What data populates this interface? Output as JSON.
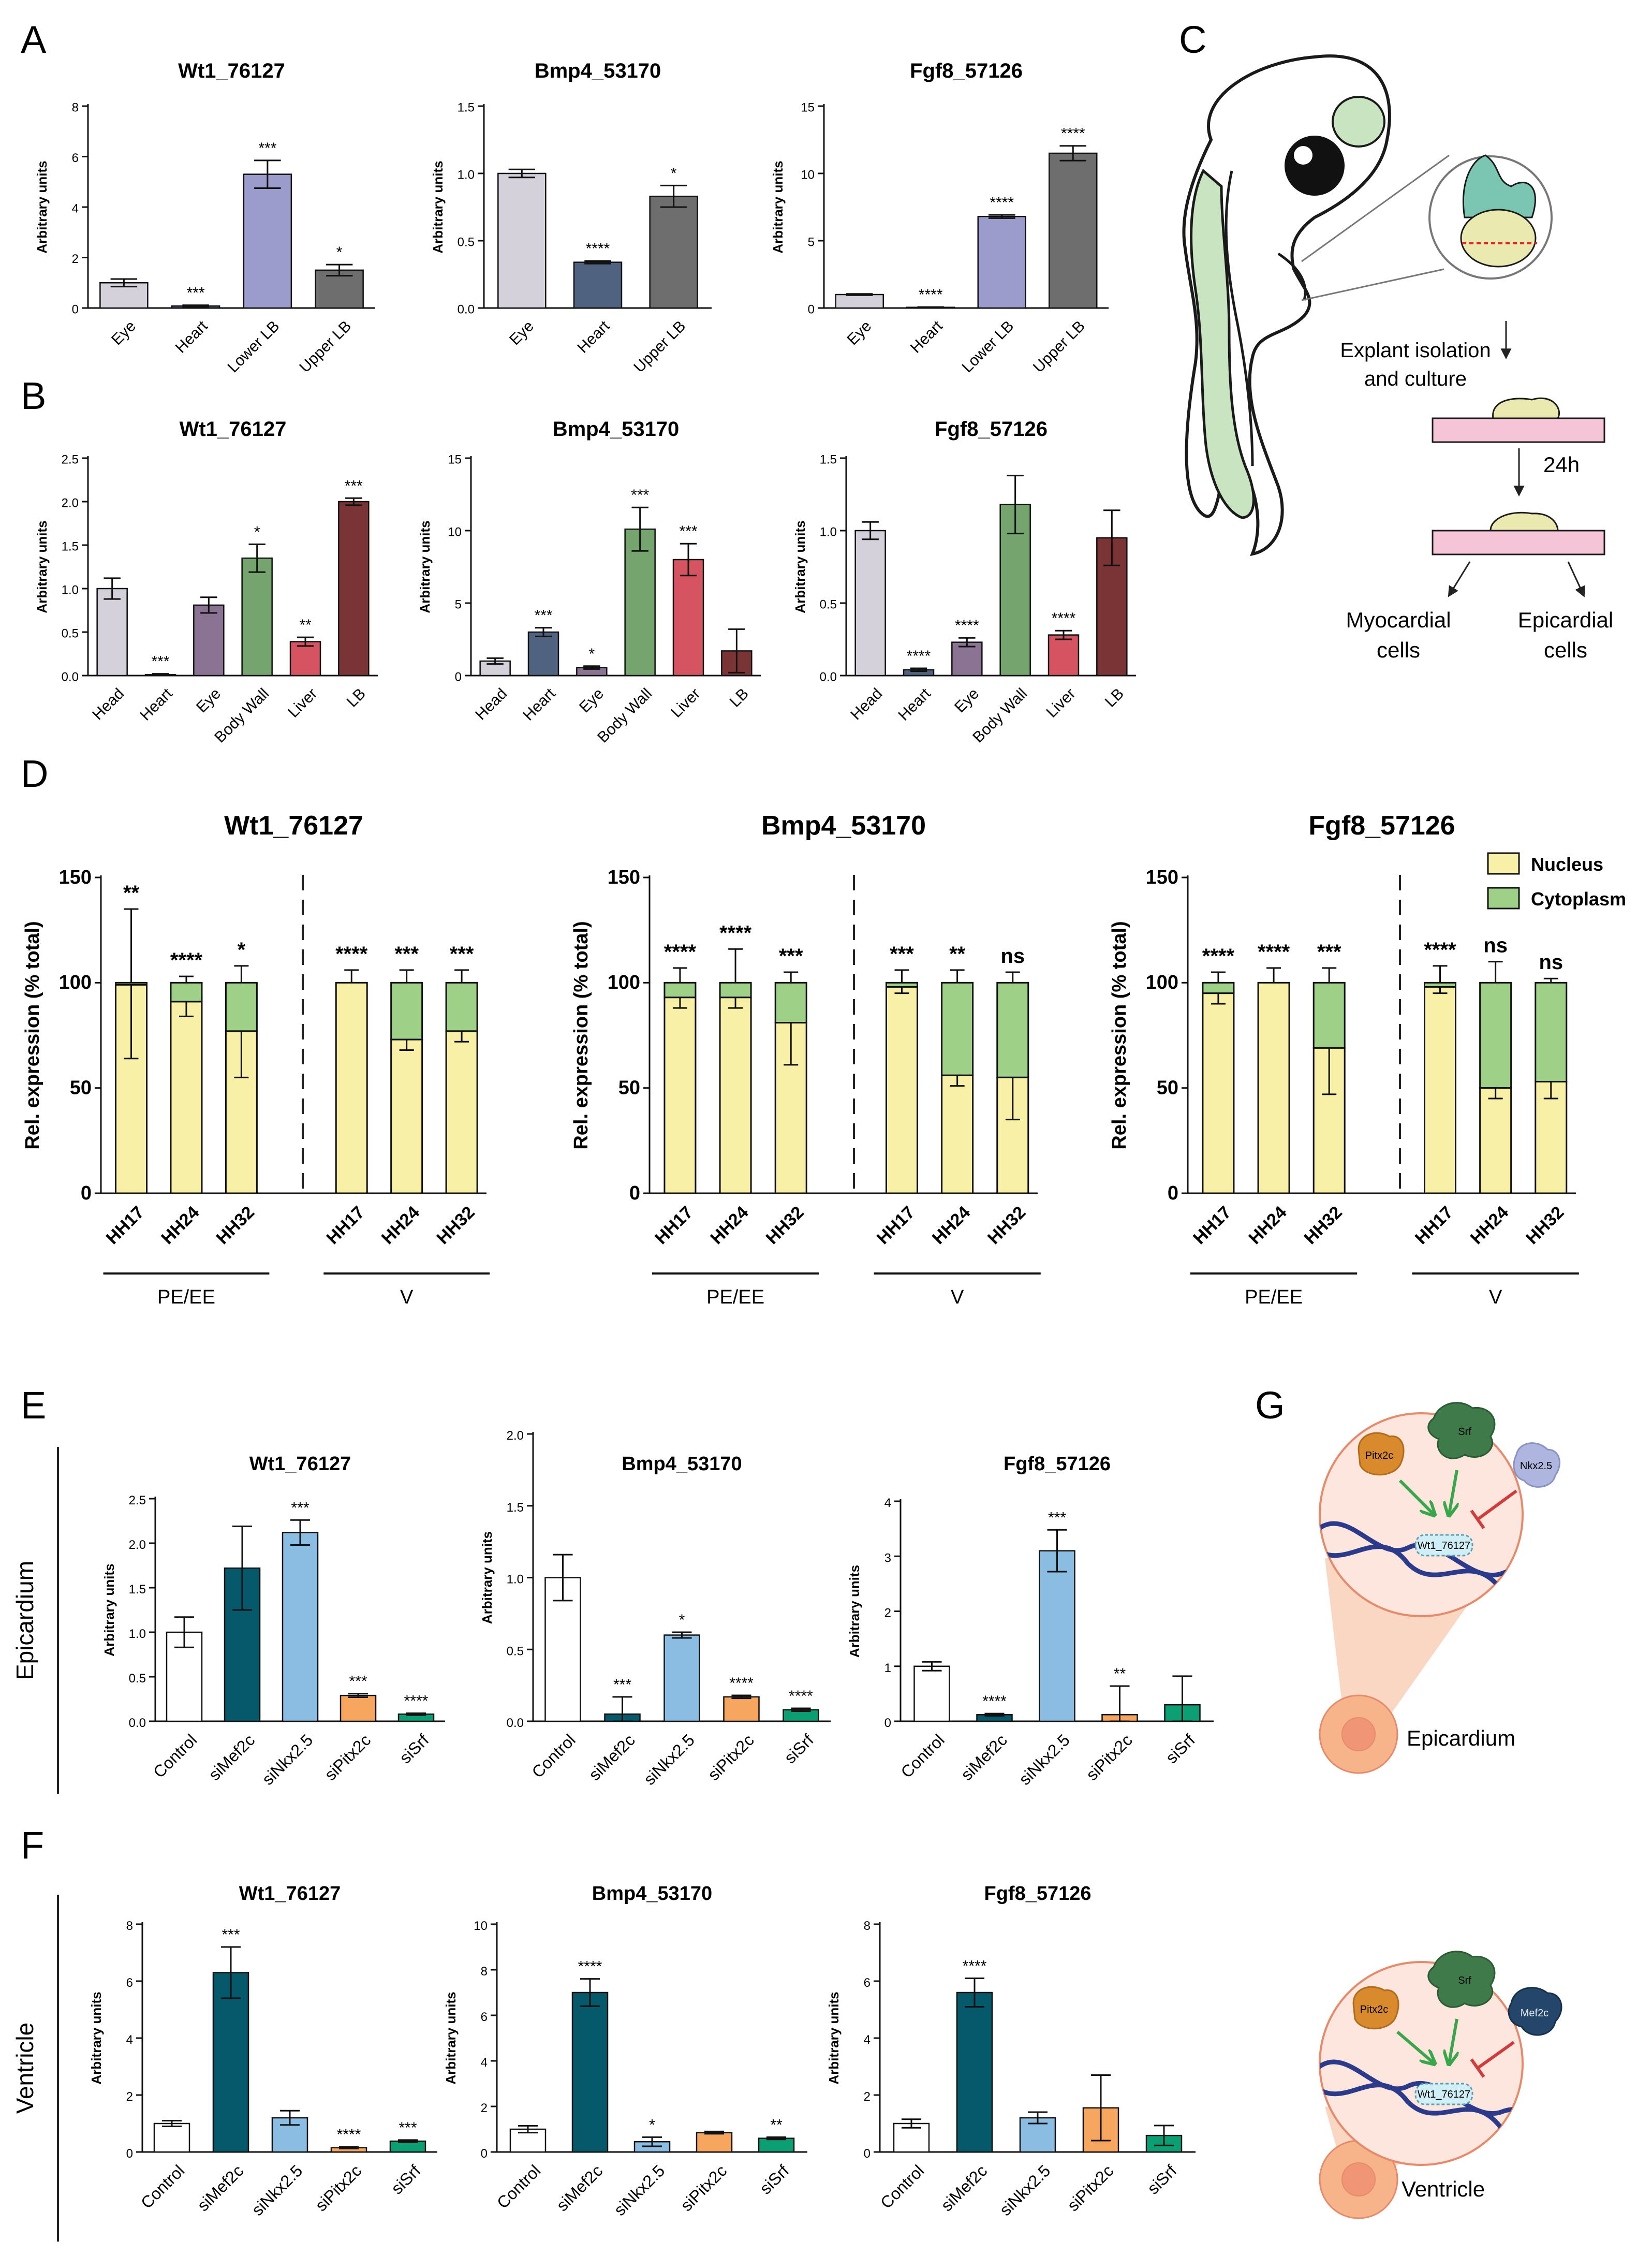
{
  "figure": {
    "panel_letters": [
      "A",
      "B",
      "C",
      "D",
      "E",
      "F",
      "G"
    ],
    "row_labels": {
      "epicardium": "Epicardium",
      "ventricle": "Ventricle"
    }
  },
  "colors": {
    "grey_light": "#d4d1db",
    "slate": "#4f6280",
    "grey_dark": "#6e6e6e",
    "lavender": "#9c9ccc",
    "purple": "#8a7393",
    "green": "#76a46f",
    "red": "#d65462",
    "maroon": "#7a3436",
    "teal": "#06586b",
    "sky": "#8bbde3",
    "orange": "#f7a660",
    "emerald": "#0c9f74",
    "nucleus": "#f7f0a6",
    "cytoplasm": "#9ed087"
  },
  "diagram_c": {
    "step1": [
      "Explant isolation",
      "and culture"
    ],
    "time": "24h",
    "out_left": [
      "Myocardial",
      "cells"
    ],
    "out_right": [
      "Epicardial",
      "cells"
    ]
  },
  "diagram_g": {
    "top": {
      "factors": [
        "Pitx2c",
        "Srf",
        "Nkx2.5"
      ],
      "target": "Wt1_76127",
      "tissue": "Epicardium"
    },
    "bottom": {
      "factors": [
        "Pitx2c",
        "Srf",
        "Mef2c"
      ],
      "target": "Wt1_76127",
      "tissue": "Ventricle"
    }
  },
  "chart_data": [
    {
      "id": "A1",
      "panel": "A",
      "type": "bar",
      "title": "Wt1_76127",
      "ylabel": "Arbitrary units",
      "ylim": [
        0,
        8
      ],
      "yticks": [
        0,
        2,
        4,
        6,
        8
      ],
      "categories": [
        "Eye",
        "Heart",
        "Lower LB",
        "Upper LB"
      ],
      "values": [
        1.0,
        0.08,
        5.3,
        1.5
      ],
      "errors": [
        0.15,
        0.03,
        0.55,
        0.22
      ],
      "sig": [
        "",
        "***",
        "***",
        "*"
      ],
      "colors": [
        "grey_light",
        "slate",
        "lavender",
        "grey_dark"
      ]
    },
    {
      "id": "A2",
      "panel": "A",
      "type": "bar",
      "title": "Bmp4_53170",
      "ylabel": "Arbitrary units",
      "ylim": [
        0,
        1.5
      ],
      "yticks": [
        0.0,
        0.5,
        1.0,
        1.5
      ],
      "categories": [
        "Eye",
        "Heart",
        "Upper LB"
      ],
      "values": [
        1.0,
        0.34,
        0.83
      ],
      "errors": [
        0.03,
        0.01,
        0.08
      ],
      "sig": [
        "",
        "****",
        "*"
      ],
      "colors": [
        "grey_light",
        "slate",
        "grey_dark"
      ]
    },
    {
      "id": "A3",
      "panel": "A",
      "type": "bar",
      "title": "Fgf8_57126",
      "ylabel": "Arbitrary units",
      "ylim": [
        0,
        15
      ],
      "yticks": [
        0,
        5,
        10,
        15
      ],
      "categories": [
        "Eye",
        "Heart",
        "Lower LB",
        "Upper LB"
      ],
      "values": [
        1.0,
        0.05,
        6.8,
        11.5
      ],
      "errors": [
        0.05,
        0.02,
        0.12,
        0.55
      ],
      "sig": [
        "",
        "****",
        "****",
        "****"
      ],
      "colors": [
        "grey_light",
        "slate",
        "lavender",
        "grey_dark"
      ]
    },
    {
      "id": "B1",
      "panel": "B",
      "type": "bar",
      "title": "Wt1_76127",
      "ylabel": "Arbitrary units",
      "ylim": [
        0,
        2.5
      ],
      "yticks": [
        0.0,
        0.5,
        1.0,
        1.5,
        2.0,
        2.5
      ],
      "categories": [
        "Head",
        "Heart",
        "Eye",
        "Body Wall",
        "Liver",
        "LB"
      ],
      "values": [
        1.0,
        0.01,
        0.81,
        1.35,
        0.39,
        2.0
      ],
      "errors": [
        0.12,
        0.01,
        0.09,
        0.16,
        0.05,
        0.04
      ],
      "sig": [
        "",
        "***",
        "",
        "*",
        "**",
        "***"
      ],
      "colors": [
        "grey_light",
        "slate",
        "purple",
        "green",
        "red",
        "maroon"
      ]
    },
    {
      "id": "B2",
      "panel": "B",
      "type": "bar",
      "title": "Bmp4_53170",
      "ylabel": "Arbitrary units",
      "ylim": [
        0,
        15
      ],
      "yticks": [
        0,
        5,
        10,
        15
      ],
      "categories": [
        "Head",
        "Heart",
        "Eye",
        "Body Wall",
        "Liver",
        "LB"
      ],
      "values": [
        1.0,
        3.0,
        0.55,
        10.1,
        8.0,
        1.7
      ],
      "errors": [
        0.2,
        0.3,
        0.1,
        1.5,
        1.1,
        1.5
      ],
      "sig": [
        "",
        "***",
        "*",
        "***",
        "***",
        ""
      ],
      "colors": [
        "grey_light",
        "slate",
        "purple",
        "green",
        "red",
        "maroon"
      ]
    },
    {
      "id": "B3",
      "panel": "B",
      "type": "bar",
      "title": "Fgf8_57126",
      "ylabel": "Arbitrary units",
      "ylim": [
        0,
        1.5
      ],
      "yticks": [
        0.0,
        0.5,
        1.0,
        1.5
      ],
      "categories": [
        "Head",
        "Heart",
        "Eye",
        "Body Wall",
        "Liver",
        "LB"
      ],
      "values": [
        1.0,
        0.04,
        0.23,
        1.18,
        0.28,
        0.95
      ],
      "errors": [
        0.06,
        0.01,
        0.03,
        0.2,
        0.03,
        0.19
      ],
      "sig": [
        "",
        "****",
        "****",
        "",
        "****",
        ""
      ],
      "colors": [
        "grey_light",
        "slate",
        "purple",
        "green",
        "red",
        "maroon"
      ]
    },
    {
      "id": "D1",
      "panel": "D",
      "type": "bar",
      "stacked": true,
      "title": "Wt1_76127",
      "ylabel": "Rel. expression (% total)",
      "ylim": [
        0,
        150
      ],
      "yticks": [
        0,
        50,
        100,
        150
      ],
      "categories": [
        "HH17",
        "HH24",
        "HH32",
        "HH17",
        "HH24",
        "HH32"
      ],
      "groups": [
        "PE/EE",
        "V"
      ],
      "series": [
        {
          "name": "Nucleus",
          "values": [
            99,
            91,
            77,
            100,
            73,
            77
          ],
          "errors": [
            35,
            7,
            22,
            0,
            5,
            5
          ]
        },
        {
          "name": "Cytoplasm",
          "values": [
            1,
            9,
            23,
            0,
            27,
            23
          ],
          "errors": [
            35,
            3,
            8,
            6,
            6,
            6
          ]
        }
      ],
      "sig": [
        "**",
        "****",
        "*",
        "****",
        "***",
        "***"
      ]
    },
    {
      "id": "D2",
      "panel": "D",
      "type": "bar",
      "stacked": true,
      "title": "Bmp4_53170",
      "ylabel": "Rel. expression (% total)",
      "ylim": [
        0,
        150
      ],
      "yticks": [
        0,
        50,
        100,
        150
      ],
      "categories": [
        "HH17",
        "HH24",
        "HH32",
        "HH17",
        "HH24",
        "HH32"
      ],
      "groups": [
        "PE/EE",
        "V"
      ],
      "series": [
        {
          "name": "Nucleus",
          "values": [
            93,
            93,
            81,
            98,
            56,
            55
          ],
          "errors": [
            5,
            5,
            20,
            3,
            5,
            20
          ]
        },
        {
          "name": "Cytoplasm",
          "values": [
            7,
            7,
            19,
            2,
            44,
            45
          ],
          "errors": [
            7,
            16,
            5,
            6,
            6,
            5
          ]
        }
      ],
      "sig": [
        "****",
        "****",
        "***",
        "***",
        "**",
        "ns"
      ]
    },
    {
      "id": "D3",
      "panel": "D",
      "type": "bar",
      "stacked": true,
      "title": "Fgf8_57126",
      "ylabel": "Rel. expression (% total)",
      "ylim": [
        0,
        150
      ],
      "yticks": [
        0,
        50,
        100,
        150
      ],
      "categories": [
        "HH17",
        "HH24",
        "HH32",
        "HH17",
        "HH24",
        "HH32"
      ],
      "groups": [
        "PE/EE",
        "V"
      ],
      "series": [
        {
          "name": "Nucleus",
          "values": [
            95,
            100,
            69,
            98,
            50,
            53
          ],
          "errors": [
            5,
            0,
            22,
            3,
            5,
            8
          ]
        },
        {
          "name": "Cytoplasm",
          "values": [
            5,
            0,
            31,
            2,
            50,
            47
          ],
          "errors": [
            5,
            7,
            7,
            8,
            10,
            2
          ]
        }
      ],
      "sig": [
        "****",
        "****",
        "***",
        "****",
        "ns",
        "ns"
      ],
      "legend": [
        "Nucleus",
        "Cytoplasm"
      ]
    },
    {
      "id": "E1",
      "panel": "E",
      "type": "bar",
      "title": "Wt1_76127",
      "ylabel": "Arbitrary units",
      "ylim": [
        0,
        2.5
      ],
      "yticks": [
        0.0,
        0.5,
        1.0,
        1.5,
        2.0,
        2.5
      ],
      "categories": [
        "Control",
        "siMef2c",
        "siNkx2.5",
        "siPitx2c",
        "siSrf"
      ],
      "values": [
        1.0,
        1.72,
        2.12,
        0.29,
        0.08
      ],
      "errors": [
        0.17,
        0.47,
        0.14,
        0.02,
        0.01
      ],
      "sig": [
        "",
        "",
        "***",
        "***",
        "****"
      ],
      "colors": [
        "white",
        "teal",
        "sky",
        "orange",
        "emerald"
      ]
    },
    {
      "id": "E2",
      "panel": "E",
      "type": "bar",
      "title": "Bmp4_53170",
      "ylabel": "Arbitrary units",
      "ylim": [
        0,
        2.0
      ],
      "yticks": [
        0.0,
        0.5,
        1.0,
        1.5,
        2.0
      ],
      "categories": [
        "Control",
        "siMef2c",
        "siNkx2.5",
        "siPitx2c",
        "siSrf"
      ],
      "values": [
        1.0,
        0.05,
        0.6,
        0.17,
        0.08
      ],
      "errors": [
        0.16,
        0.12,
        0.02,
        0.01,
        0.01
      ],
      "sig": [
        "",
        "***",
        "*",
        "****",
        "****"
      ],
      "colors": [
        "white",
        "teal",
        "sky",
        "orange",
        "emerald"
      ]
    },
    {
      "id": "E3",
      "panel": "E",
      "type": "bar",
      "title": "Fgf8_57126",
      "ylabel": "Arbitrary units",
      "ylim": [
        0,
        4
      ],
      "yticks": [
        0,
        1,
        2,
        3,
        4
      ],
      "categories": [
        "Control",
        "siMef2c",
        "siNkx2.5",
        "siPitx2c",
        "siSrf"
      ],
      "values": [
        1.0,
        0.12,
        3.1,
        0.12,
        0.3
      ],
      "errors": [
        0.08,
        0.02,
        0.38,
        0.52,
        0.52
      ],
      "sig": [
        "",
        "****",
        "***",
        "**",
        ""
      ],
      "colors": [
        "white",
        "teal",
        "sky",
        "orange",
        "emerald"
      ]
    },
    {
      "id": "F1",
      "panel": "F",
      "type": "bar",
      "title": "Wt1_76127",
      "ylabel": "Arbitrary units",
      "ylim": [
        0,
        8
      ],
      "yticks": [
        0,
        2,
        4,
        6,
        8
      ],
      "categories": [
        "Control",
        "siMef2c",
        "siNkx2.5",
        "siPitx2c",
        "siSrf"
      ],
      "values": [
        1.0,
        6.3,
        1.2,
        0.15,
        0.38
      ],
      "errors": [
        0.1,
        0.9,
        0.25,
        0.03,
        0.04
      ],
      "sig": [
        "",
        "***",
        "",
        "****",
        "***"
      ],
      "colors": [
        "white",
        "teal",
        "sky",
        "orange",
        "emerald"
      ]
    },
    {
      "id": "F2",
      "panel": "F",
      "type": "bar",
      "title": "Bmp4_53170",
      "ylabel": "Arbitrary units",
      "ylim": [
        0,
        10
      ],
      "yticks": [
        0,
        2,
        4,
        6,
        8,
        10
      ],
      "categories": [
        "Control",
        "siMef2c",
        "siNkx2.5",
        "siPitx2c",
        "siSrf"
      ],
      "values": [
        1.0,
        7.0,
        0.45,
        0.85,
        0.6
      ],
      "errors": [
        0.15,
        0.6,
        0.2,
        0.05,
        0.05
      ],
      "sig": [
        "",
        "****",
        "*",
        "",
        "**"
      ],
      "colors": [
        "white",
        "teal",
        "sky",
        "orange",
        "emerald"
      ]
    },
    {
      "id": "F3",
      "panel": "F",
      "type": "bar",
      "title": "Fgf8_57126",
      "ylabel": "Arbitrary units",
      "ylim": [
        0,
        8
      ],
      "yticks": [
        0,
        2,
        4,
        6,
        8
      ],
      "categories": [
        "Control",
        "siMef2c",
        "siNkx2.5",
        "siPitx2c",
        "siSrf"
      ],
      "values": [
        1.0,
        5.6,
        1.2,
        1.55,
        0.58
      ],
      "errors": [
        0.15,
        0.5,
        0.2,
        1.15,
        0.35
      ],
      "sig": [
        "",
        "****",
        "",
        "",
        ""
      ],
      "colors": [
        "white",
        "teal",
        "sky",
        "orange",
        "emerald"
      ]
    }
  ]
}
